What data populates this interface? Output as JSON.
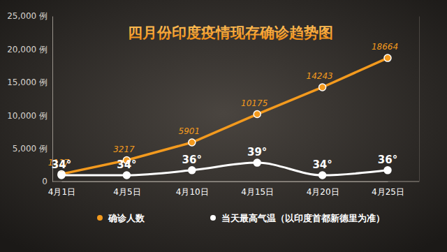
{
  "chart_data": {
    "type": "line",
    "title": "四月份印度疫情现存确诊趋势图",
    "categories": [
      "4月1日",
      "4月5日",
      "4月10日",
      "4月15日",
      "4月20日",
      "4月25日"
    ],
    "series": [
      {
        "name": "确诊人数",
        "color": "#f39a1e",
        "marker": "circle",
        "line_style": "solid",
        "values": [
          1117,
          3217,
          5901,
          10175,
          14243,
          18664
        ]
      },
      {
        "name": "当天最高气温（以印度首都新德里为准）",
        "color": "#ffffff",
        "marker": "circle",
        "line_style": "smooth",
        "axis": "y2",
        "values": [
          34,
          34,
          36,
          39,
          34,
          36
        ],
        "value_labels": [
          "34°",
          "34°",
          "36°",
          "39°",
          "34°",
          "36°"
        ]
      }
    ],
    "ylim": [
      0,
      25000
    ],
    "yticks": [
      0,
      {
        "value": 5000,
        "label": "5,000 例"
      },
      {
        "value": 10000,
        "label": "10,000 例"
      },
      {
        "value": 15000,
        "label": "15,000 例"
      },
      {
        "value": 20000,
        "label": "20,000 例"
      },
      {
        "value": 25000,
        "label": "25,000 例"
      }
    ],
    "y2lim": [
      31.5,
      97.5
    ],
    "y2ticks": [],
    "grid": false,
    "legend": "bottom",
    "data_labels": true
  }
}
